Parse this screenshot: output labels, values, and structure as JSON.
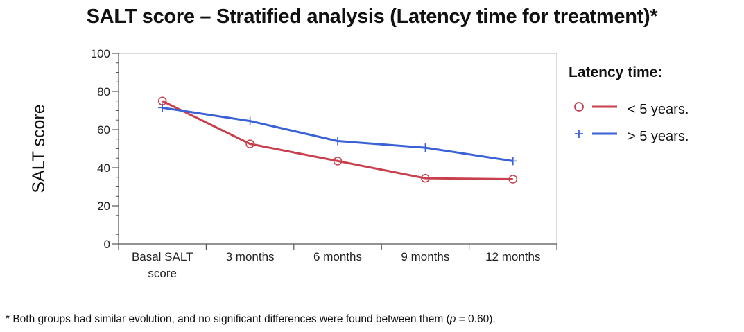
{
  "colors": {
    "under_5": "#c8404e",
    "over_5": "#3a62d6",
    "axis": "#555555",
    "frame": "#bbbbbb"
  },
  "chart_data": {
    "type": "line",
    "title": "SALT score – Stratified analysis (Latency time for treatment)*",
    "ylabel": "SALT score",
    "xlabel": "",
    "ylim": [
      0,
      100
    ],
    "yticks": [
      0,
      20,
      40,
      60,
      80,
      100
    ],
    "categories": [
      [
        "Basal SALT",
        "score"
      ],
      [
        "3 months"
      ],
      [
        "6 months"
      ],
      [
        "9 months"
      ],
      [
        "12 months"
      ]
    ],
    "legend": {
      "title": "Latency time:",
      "position": "right"
    },
    "series": [
      {
        "name": "< 5 years.",
        "marker": "circle",
        "values": [
          75,
          52.5,
          43.5,
          34.5,
          34
        ]
      },
      {
        "name": "> 5 years.",
        "marker": "plus",
        "values": [
          71.5,
          64.5,
          54,
          50.5,
          43.5
        ]
      }
    ]
  },
  "footnote": {
    "before": "* Both groups had similar evolution, and no significant differences were found between them (",
    "p_symbol": "p",
    "after": " = 0.60)."
  }
}
